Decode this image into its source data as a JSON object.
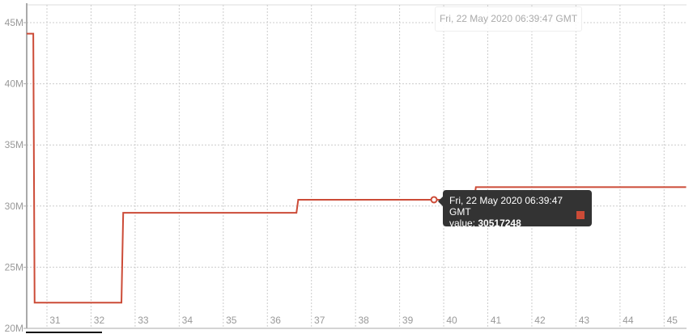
{
  "chart_data": {
    "type": "line",
    "step": true,
    "color": "#cc4b37",
    "grid": true,
    "ylim": [
      20000000,
      46500000
    ],
    "xlim": [
      30.54,
      45.5
    ],
    "y_ticks": [
      {
        "v": 20000000,
        "label": "20M"
      },
      {
        "v": 25000000,
        "label": "25M"
      },
      {
        "v": 30000000,
        "label": "30M"
      },
      {
        "v": 35000000,
        "label": "35M"
      },
      {
        "v": 40000000,
        "label": "40M"
      },
      {
        "v": 45000000,
        "label": "45M"
      }
    ],
    "x_ticks": [
      "31",
      "32",
      "33",
      "34",
      "35",
      "36",
      "37",
      "38",
      "39",
      "40",
      "41",
      "42",
      "43",
      "44",
      "45"
    ],
    "points": [
      {
        "x": 30.54,
        "y": 44100000
      },
      {
        "x": 30.69,
        "y": 44100000
      },
      {
        "x": 30.72,
        "y": 22100000
      },
      {
        "x": 32.69,
        "y": 22100000
      },
      {
        "x": 32.73,
        "y": 29450000
      },
      {
        "x": 36.66,
        "y": 29450000
      },
      {
        "x": 36.7,
        "y": 30517248
      },
      {
        "x": 40.69,
        "y": 30517248
      },
      {
        "x": 40.73,
        "y": 31550000
      },
      {
        "x": 45.5,
        "y": 31550000
      }
    ],
    "highlight": {
      "x": 39.78,
      "y": 30517248
    }
  },
  "hover_label": "Fri, 22 May 2020 06:39:47 GMT",
  "tooltip": {
    "date": "Fri, 22 May 2020 06:39:47 GMT",
    "value_label": "value:",
    "value": "30517248"
  }
}
